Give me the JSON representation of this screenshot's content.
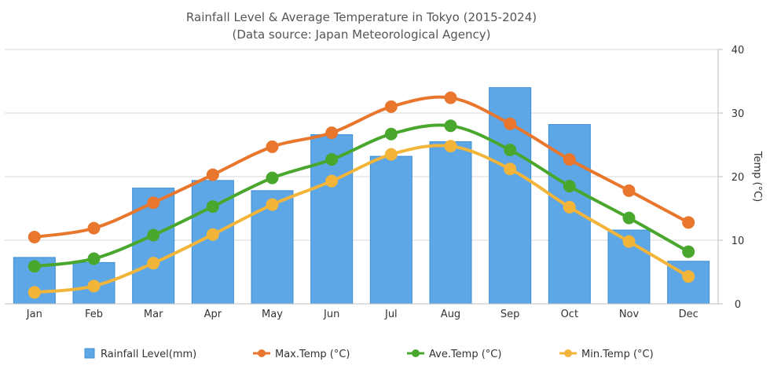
{
  "chart_data": {
    "type": "bar+line",
    "title": "Rainfall Level & Average Temperature in Tokyo (2015-2024)",
    "subtitle": "(Data source: Japan Meteorological Agency)",
    "categories": [
      "Jan",
      "Feb",
      "Mar",
      "Apr",
      "May",
      "Jun",
      "Jul",
      "Aug",
      "Sep",
      "Oct",
      "Nov",
      "Dec"
    ],
    "right_axis": {
      "label": "Temp (°C)",
      "range": [
        0,
        40
      ],
      "ticks": [
        "0",
        "10",
        "20",
        "30",
        "40"
      ]
    },
    "grid": true,
    "legend_position": "bottom",
    "bar_series": {
      "name": "Rainfall Level(mm)",
      "color": "#5ea7e6",
      "values_on_right_axis_scale": [
        7.3,
        6.5,
        18.2,
        19.4,
        17.8,
        26.6,
        23.2,
        25.5,
        34.0,
        28.2,
        11.6,
        6.7
      ]
    },
    "series": [
      {
        "name": "Max.Temp (°C)",
        "color": "#e8762d",
        "values": [
          10.5,
          11.9,
          15.9,
          20.3,
          24.7,
          26.9,
          31.0,
          32.4,
          28.3,
          22.7,
          17.8,
          12.8
        ]
      },
      {
        "name": "Ave.Temp (°C)",
        "color": "#4aa72e",
        "values": [
          5.9,
          7.1,
          10.8,
          15.3,
          19.8,
          22.7,
          26.7,
          28.0,
          24.2,
          18.5,
          13.5,
          8.2
        ]
      },
      {
        "name": "Min.Temp (°C)",
        "color": "#f2b53a",
        "values": [
          1.8,
          2.8,
          6.4,
          10.9,
          15.6,
          19.3,
          23.5,
          24.8,
          21.2,
          15.2,
          9.8,
          4.3
        ]
      }
    ]
  }
}
